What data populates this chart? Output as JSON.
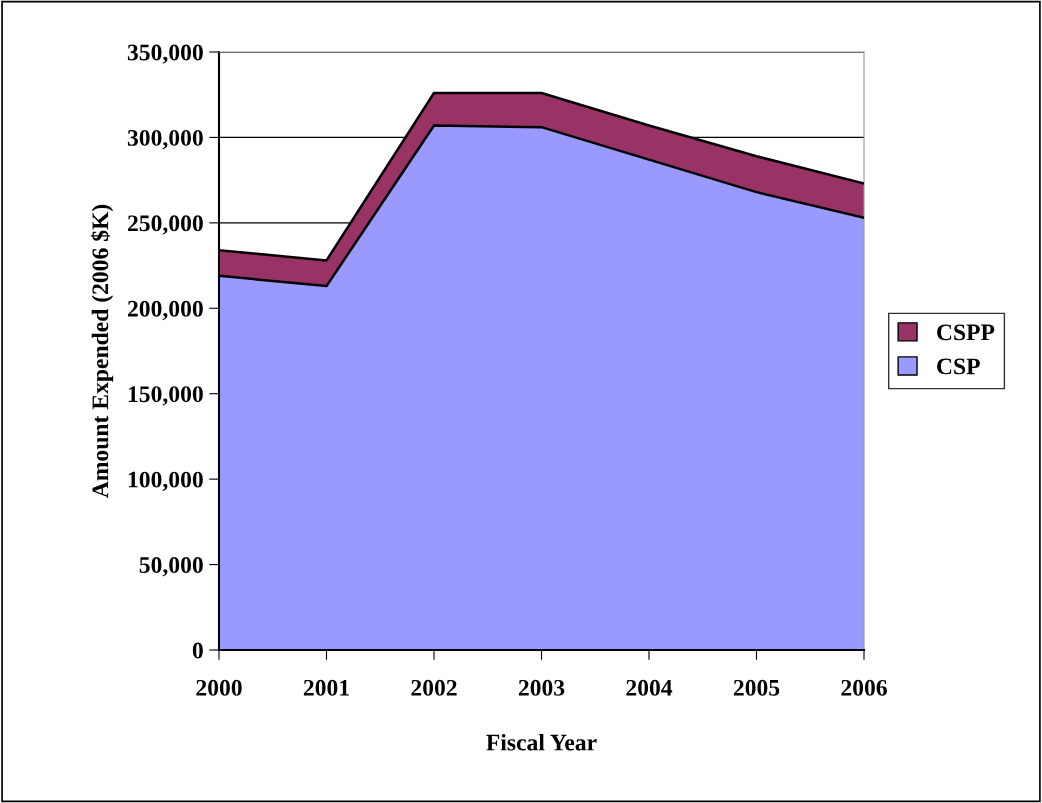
{
  "chart_data": {
    "type": "area",
    "stacked": true,
    "xlabel": "Fiscal Year",
    "ylabel": "Amount Expended (2006 $K)",
    "categories": [
      "2000",
      "2001",
      "2002",
      "2003",
      "2004",
      "2005",
      "2006"
    ],
    "series": [
      {
        "name": "CSP",
        "color": "#9999ff",
        "values": [
          219000,
          213000,
          307000,
          306000,
          287000,
          268000,
          253000
        ]
      },
      {
        "name": "CSPP",
        "color": "#993366",
        "values": [
          15000,
          15000,
          19000,
          20000,
          20000,
          21000,
          20000
        ]
      }
    ],
    "ylim": [
      0,
      350000
    ],
    "yticks": [
      {
        "value": 0,
        "label": "0"
      },
      {
        "value": 50000,
        "label": "50,000"
      },
      {
        "value": 100000,
        "label": "100,000"
      },
      {
        "value": 150000,
        "label": "150,000"
      },
      {
        "value": 200000,
        "label": "200,000"
      },
      {
        "value": 250000,
        "label": "250,000"
      },
      {
        "value": 300000,
        "label": "300,000"
      },
      {
        "value": 350000,
        "label": "350,000"
      }
    ],
    "grid": "y",
    "legend": "right"
  }
}
